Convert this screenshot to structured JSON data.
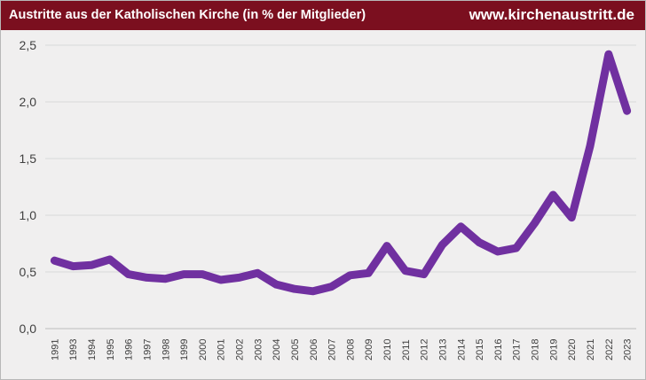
{
  "header": {
    "title": "Austritte aus der Katholischen Kirche (in % der Mitglieder)",
    "site": "www.kirchenaustritt.de"
  },
  "chart_data": {
    "type": "line",
    "title": "Austritte aus der Katholischen Kirche (in % der Mitglieder)",
    "xlabel": "",
    "ylabel": "",
    "ylim": [
      0,
      2.5
    ],
    "yticks": [
      "0,0",
      "0,5",
      "1,0",
      "1,5",
      "2,0",
      "2,5"
    ],
    "grid": "horizontal",
    "legend": "none",
    "line_color": "#7030a0",
    "x": [
      "1991",
      "1993",
      "1994",
      "1995",
      "1996",
      "1997",
      "1998",
      "1999",
      "2000",
      "2001",
      "2002",
      "2003",
      "2004",
      "2005",
      "2006",
      "2007",
      "2008",
      "2009",
      "2010",
      "2011",
      "2012",
      "2013",
      "2014",
      "2015",
      "2016",
      "2017",
      "2018",
      "2019",
      "2020",
      "2021",
      "2022",
      "2023"
    ],
    "series": [
      {
        "values": [
          0.6,
          0.55,
          0.56,
          0.61,
          0.48,
          0.45,
          0.44,
          0.48,
          0.48,
          0.43,
          0.45,
          0.49,
          0.39,
          0.35,
          0.33,
          0.37,
          0.47,
          0.49,
          0.73,
          0.51,
          0.48,
          0.74,
          0.9,
          0.76,
          0.68,
          0.71,
          0.93,
          1.18,
          0.98,
          1.61,
          2.42,
          1.92
        ]
      }
    ]
  }
}
